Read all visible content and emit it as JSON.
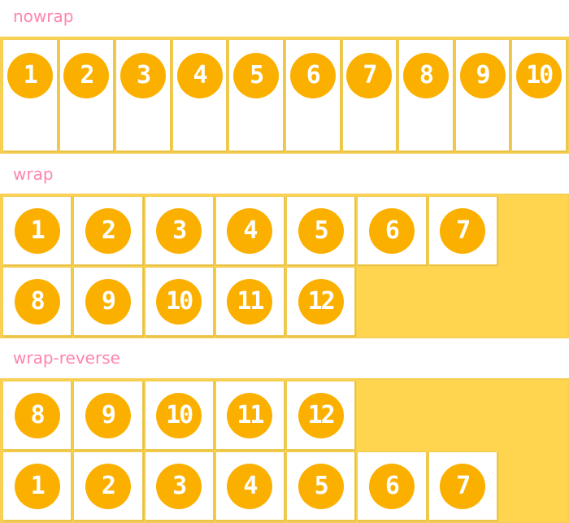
{
  "sections": [
    {
      "label": "nowrap",
      "items": [
        "1",
        "2",
        "3",
        "4",
        "5",
        "6",
        "7",
        "8",
        "9",
        "10"
      ]
    },
    {
      "label": "wrap",
      "items": [
        "1",
        "2",
        "3",
        "4",
        "5",
        "6",
        "7",
        "8",
        "9",
        "10",
        "11",
        "12"
      ]
    },
    {
      "label": "wrap-reverse",
      "items": [
        "1",
        "2",
        "3",
        "4",
        "5",
        "6",
        "7",
        "8",
        "9",
        "10",
        "11",
        "12"
      ]
    }
  ],
  "colors": {
    "label": "#ff85ad",
    "container": "#ffd54f",
    "circle": "#fbb000"
  }
}
